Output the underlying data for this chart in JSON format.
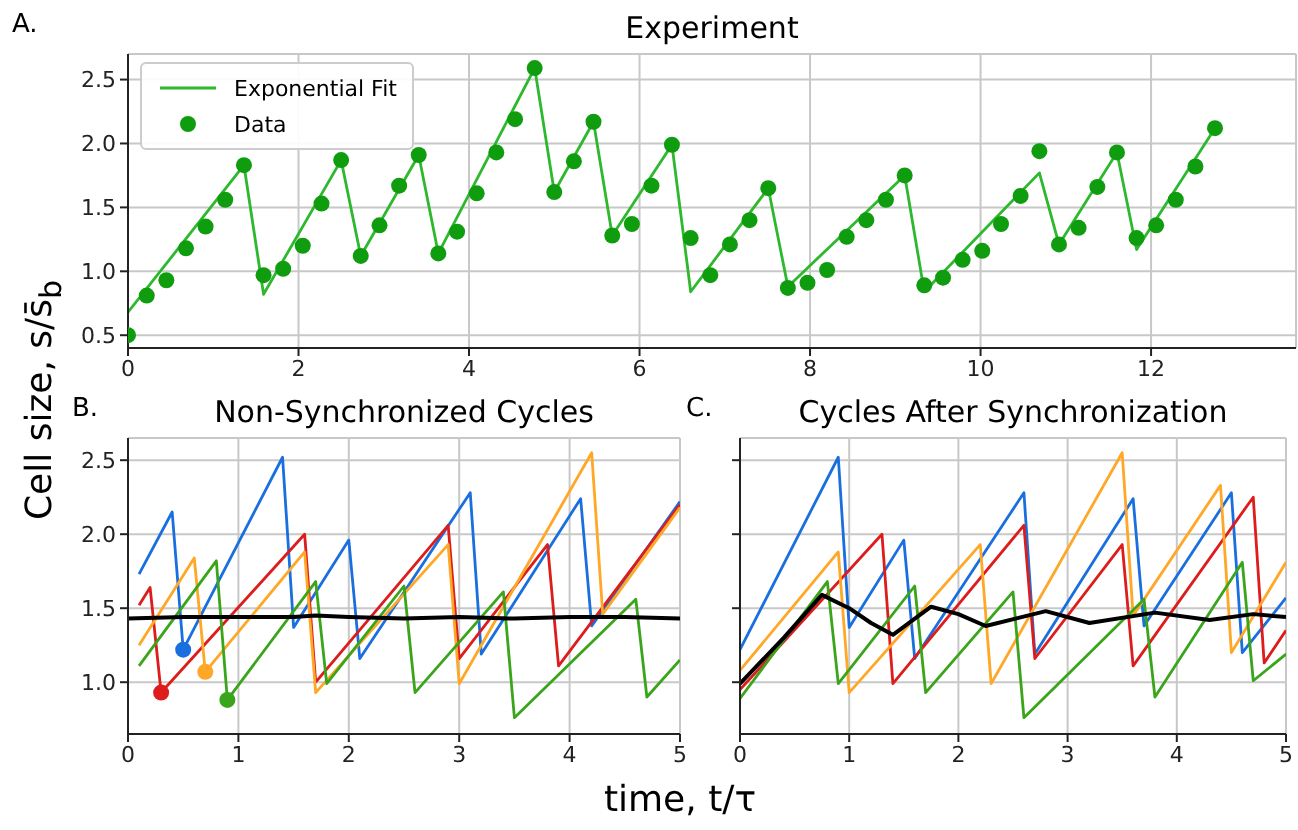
{
  "chart_data": [
    {
      "type": "line",
      "title": "Experiment",
      "ylabel": "Cell size,  s/s̄$_{b}$",
      "annotations": [
        "A."
      ],
      "xlim": [
        0,
        13.7
      ],
      "xticks": [
        0,
        2,
        4,
        6,
        8,
        10,
        12
      ],
      "ylim": [
        0.4,
        2.7
      ],
      "yticks": [
        0.5,
        {
          "value": 1,
          "label": "1.0"
        },
        1.5,
        {
          "value": 2,
          "label": "2.0"
        },
        2.5
      ],
      "grid": true,
      "legend": "top left",
      "series": [
        {
          "name": "Exponential Fit",
          "color": "#2db82d",
          "x": [
            0,
            1.36,
            1.59,
            2.5,
            2.73,
            3.41,
            3.64,
            4.77,
            5.0,
            5.46,
            5.68,
            6.38,
            6.6,
            7.51,
            7.74,
            9.11,
            9.34,
            10.69,
            10.92,
            11.6,
            11.83,
            12.75
          ],
          "values": [
            0.68,
            1.83,
            0.82,
            1.87,
            1.12,
            1.91,
            1.14,
            2.59,
            1.62,
            2.17,
            1.28,
            1.99,
            0.84,
            1.65,
            0.88,
            1.75,
            0.84,
            1.77,
            1.21,
            1.93,
            1.17,
            2.12
          ]
        },
        {
          "name": "Data",
          "type": "scatter",
          "marker": "circle",
          "color": "#0f9d0f",
          "x": [
            0,
            0.22,
            0.45,
            0.68,
            0.91,
            1.14,
            1.36,
            1.59,
            1.82,
            2.05,
            2.27,
            2.5,
            2.73,
            2.95,
            3.18,
            3.41,
            3.64,
            3.86,
            4.09,
            4.32,
            4.54,
            4.77,
            5.0,
            5.23,
            5.46,
            5.68,
            5.91,
            6.14,
            6.38,
            6.6,
            6.83,
            7.06,
            7.29,
            7.51,
            7.74,
            7.97,
            8.2,
            8.43,
            8.66,
            8.89,
            9.11,
            9.34,
            9.56,
            9.79,
            10.02,
            10.24,
            10.47,
            10.69,
            10.92,
            11.15,
            11.37,
            11.6,
            11.83,
            12.06,
            12.29,
            12.52,
            12.75
          ],
          "values": [
            0.5,
            0.81,
            0.93,
            1.18,
            1.35,
            1.56,
            1.83,
            0.97,
            1.02,
            1.2,
            1.53,
            1.87,
            1.12,
            1.36,
            1.67,
            1.91,
            1.14,
            1.31,
            1.61,
            1.93,
            2.19,
            2.59,
            1.62,
            1.86,
            2.17,
            1.28,
            1.37,
            1.67,
            1.99,
            1.26,
            0.97,
            1.21,
            1.4,
            1.65,
            0.87,
            0.91,
            1.01,
            1.27,
            1.4,
            1.56,
            1.75,
            0.89,
            0.95,
            1.09,
            1.16,
            1.37,
            1.59,
            1.94,
            1.21,
            1.34,
            1.66,
            1.93,
            1.26,
            1.36,
            1.56,
            1.82,
            2.12
          ]
        }
      ]
    },
    {
      "type": "line",
      "title": "Non-Synchronized Cycles",
      "xlabel": "time,  t/τ",
      "annotations": [
        "B."
      ],
      "xlim": [
        0,
        5
      ],
      "xticks": [
        0,
        1,
        2,
        3,
        4,
        5
      ],
      "ylim": [
        0.65,
        2.65
      ],
      "yticks": [
        {
          "value": 1,
          "label": "1.0"
        },
        1.5,
        {
          "value": 2,
          "label": "2.0"
        },
        2.5
      ],
      "grid": true,
      "series": [
        {
          "color": "#1a6fdf",
          "x": [
            0.1,
            0.4,
            0.5,
            1.4,
            1.5,
            2.0,
            2.1,
            3.1,
            3.2,
            4.1,
            4.2,
            5.0
          ],
          "values": [
            1.73,
            2.15,
            1.22,
            2.52,
            1.37,
            1.96,
            1.16,
            2.28,
            1.19,
            2.24,
            1.38,
            2.22
          ]
        },
        {
          "color": "#dd1c1c",
          "x": [
            0.1,
            0.2,
            0.3,
            1.6,
            1.7,
            2.9,
            3.0,
            3.8,
            3.9,
            5.0
          ],
          "values": [
            1.52,
            1.64,
            0.93,
            2.0,
            1.0,
            2.06,
            1.16,
            1.93,
            1.11,
            2.2
          ]
        },
        {
          "color": "#ffa726",
          "x": [
            0.1,
            0.6,
            0.7,
            1.6,
            1.7,
            2.9,
            3.0,
            4.2,
            4.3,
            5.0
          ],
          "values": [
            1.25,
            1.84,
            1.07,
            1.88,
            0.93,
            1.93,
            0.99,
            2.55,
            1.46,
            2.18
          ]
        },
        {
          "color": "#3aa51a",
          "x": [
            0.1,
            0.8,
            0.9,
            1.7,
            1.8,
            2.5,
            2.6,
            3.4,
            3.5,
            4.6,
            4.7,
            5.0
          ],
          "values": [
            1.11,
            1.82,
            0.88,
            1.68,
            0.99,
            1.65,
            0.93,
            1.61,
            0.76,
            1.56,
            0.9,
            1.15
          ]
        },
        {
          "color": "#000000",
          "x": [
            0,
            0.5,
            1,
            1.5,
            1.7,
            2,
            2.5,
            3,
            3.5,
            4,
            4.5,
            5
          ],
          "values": [
            1.43,
            1.44,
            1.44,
            1.44,
            1.45,
            1.44,
            1.43,
            1.44,
            1.43,
            1.44,
            1.44,
            1.43
          ]
        },
        {
          "type": "scatter",
          "marker": "circle",
          "colors": [
            "#dd1c1c",
            "#1a6fdf",
            "#ffa726",
            "#3aa51a"
          ],
          "x": [
            0.3,
            0.5,
            0.7,
            0.9
          ],
          "values": [
            0.93,
            1.22,
            1.07,
            0.88
          ]
        }
      ]
    },
    {
      "type": "line",
      "title": "Cycles After Synchronization",
      "annotations": [
        "C."
      ],
      "xlim": [
        0,
        5
      ],
      "xticks": [
        0,
        1,
        2,
        3,
        4,
        5
      ],
      "ylim": [
        0.65,
        2.65
      ],
      "yticks": [
        {
          "value": 1,
          "label": null
        },
        {
          "value": 1.5,
          "label": null
        },
        {
          "value": 2,
          "label": null
        },
        {
          "value": 2.5,
          "label": null
        }
      ],
      "tick_labels": "x",
      "grid": true,
      "series": [
        {
          "color": "#1a6fdf",
          "x": [
            0,
            0.9,
            1.0,
            1.5,
            1.6,
            2.6,
            2.7,
            3.6,
            3.7,
            4.5,
            4.6,
            5.0
          ],
          "values": [
            1.22,
            2.52,
            1.37,
            1.96,
            1.16,
            2.28,
            1.19,
            2.24,
            1.38,
            2.28,
            1.2,
            1.57
          ]
        },
        {
          "color": "#dd1c1c",
          "x": [
            0,
            1.3,
            1.4,
            2.6,
            2.7,
            3.5,
            3.6,
            4.7,
            4.8,
            5.0
          ],
          "values": [
            0.95,
            2.0,
            0.99,
            2.06,
            1.16,
            1.93,
            1.11,
            2.25,
            1.13,
            1.35
          ]
        },
        {
          "color": "#ffa726",
          "x": [
            0,
            0.9,
            1.0,
            2.2,
            2.3,
            3.5,
            3.6,
            4.4,
            4.5,
            5.0
          ],
          "values": [
            1.08,
            1.88,
            0.93,
            1.93,
            0.99,
            2.55,
            1.45,
            2.33,
            1.2,
            1.81
          ]
        },
        {
          "color": "#3aa51a",
          "x": [
            0,
            0.8,
            0.9,
            1.6,
            1.7,
            2.5,
            2.6,
            3.7,
            3.8,
            4.6,
            4.7,
            5.0
          ],
          "values": [
            0.89,
            1.68,
            0.99,
            1.65,
            0.93,
            1.61,
            0.76,
            1.56,
            0.9,
            1.81,
            1.01,
            1.19
          ]
        },
        {
          "color": "#000000",
          "x": [
            0,
            0.4,
            0.75,
            1.0,
            1.2,
            1.4,
            1.75,
            2.0,
            2.25,
            2.8,
            3.2,
            3.8,
            4.3,
            4.7,
            5.0
          ],
          "values": [
            0.99,
            1.3,
            1.59,
            1.5,
            1.4,
            1.32,
            1.51,
            1.46,
            1.38,
            1.48,
            1.4,
            1.47,
            1.42,
            1.46,
            1.44
          ]
        }
      ]
    }
  ]
}
